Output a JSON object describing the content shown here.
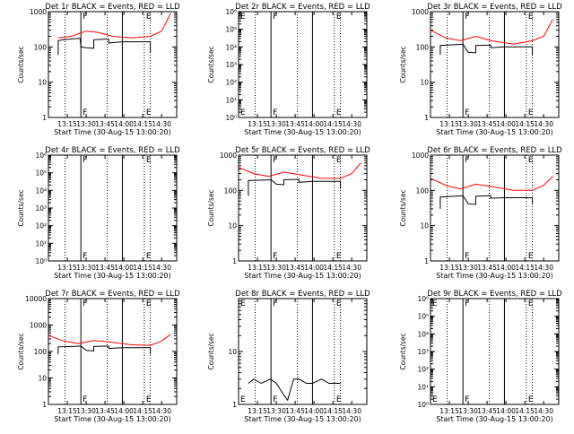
{
  "colors": {
    "events": "#000000",
    "lld": "#ff0000",
    "axes": "#000000",
    "background": "#ffffff"
  },
  "chart_data": [
    {
      "type": "line",
      "title": "Det 1r BLACK = Events, RED = LLD",
      "xlabel": "Start Time (30-Aug-15 13:00:20)",
      "ylabel": "Counts/sec",
      "ytype": "log",
      "yticks": [
        1,
        10,
        100,
        1000
      ],
      "ytick_labels": [
        "1",
        "10",
        "100",
        "1000"
      ],
      "xticks": [
        13.25,
        13.5,
        13.75,
        14.0,
        14.25,
        14.5
      ],
      "xtick_labels": [
        "13:15",
        "13:30",
        "13:45",
        "14:00",
        "14:15",
        "14:30"
      ],
      "xlim": [
        13.0,
        14.7
      ],
      "ylim": [
        1,
        1000
      ],
      "markers": [
        {
          "x": 13.22,
          "style": "dotted"
        },
        {
          "x": 13.43,
          "style": "solid",
          "label": "F"
        },
        {
          "x": 13.78,
          "style": "dotted"
        },
        {
          "x": 13.98,
          "style": "solid"
        },
        {
          "x": 14.27,
          "style": "dotted",
          "label": "E"
        },
        {
          "x": 14.35,
          "style": "dotted"
        }
      ],
      "series": [
        {
          "name": "Events",
          "x": [
            13.13,
            13.13,
            13.2,
            13.33,
            13.42,
            13.43,
            13.5,
            13.6,
            13.6,
            13.73,
            13.8,
            13.8,
            13.98,
            14.2,
            14.35,
            14.35
          ],
          "y": [
            60,
            150,
            160,
            170,
            175,
            100,
            95,
            92,
            160,
            165,
            165,
            130,
            140,
            140,
            140,
            70
          ]
        },
        {
          "name": "LLD",
          "x": [
            13.13,
            13.3,
            13.5,
            13.65,
            13.85,
            14.1,
            14.35,
            14.5,
            14.62
          ],
          "y": [
            180,
            200,
            280,
            260,
            200,
            180,
            200,
            280,
            900
          ]
        }
      ]
    },
    {
      "type": "line",
      "title": "Det 2r BLACK = Events, RED = LLD",
      "xlabel": "Start Time (30-Aug-15 13:00:20)",
      "ylabel": "Counts/sec",
      "ytype": "log",
      "yticks": [
        1,
        10,
        100,
        1000,
        10000,
        100000,
        1000000
      ],
      "ytick_labels": [
        "10⁰",
        "10¹",
        "10²",
        "10³",
        "10⁴",
        "10⁵",
        "10⁶"
      ],
      "xticks": [
        13.25,
        13.5,
        13.75,
        14.0,
        14.25,
        14.5
      ],
      "xtick_labels": [
        "13:15",
        "13:30",
        "13:45",
        "14:00",
        "14:15",
        "14:30"
      ],
      "xlim": [
        13.0,
        14.7
      ],
      "ylim": [
        1,
        1000000
      ],
      "markers": [
        {
          "x": 13.0,
          "style": "solid",
          "label": "E"
        },
        {
          "x": 13.22,
          "style": "dotted"
        },
        {
          "x": 13.43,
          "style": "solid",
          "label": "F"
        },
        {
          "x": 13.78,
          "style": "dotted"
        },
        {
          "x": 13.98,
          "style": "solid"
        },
        {
          "x": 14.27,
          "style": "dotted",
          "label": "E"
        },
        {
          "x": 14.35,
          "style": "dotted"
        }
      ],
      "series": []
    },
    {
      "type": "line",
      "title": "Det 3r BLACK = Events, RED = LLD",
      "xlabel": "Start Time (30-Aug-15 13:00:20)",
      "ylabel": "Counts/sec",
      "ytype": "log",
      "yticks": [
        1,
        10,
        100,
        1000
      ],
      "ytick_labels": [
        "1",
        "10",
        "100",
        "1000"
      ],
      "xticks": [
        13.25,
        13.5,
        13.75,
        14.0,
        14.25,
        14.5
      ],
      "xtick_labels": [
        "13:15",
        "13:30",
        "13:45",
        "14:00",
        "14:15",
        "14:30"
      ],
      "xlim": [
        13.0,
        14.7
      ],
      "ylim": [
        1,
        1000
      ],
      "markers": [
        {
          "x": 13.22,
          "style": "dotted"
        },
        {
          "x": 13.43,
          "style": "solid",
          "label": "F"
        },
        {
          "x": 13.78,
          "style": "dotted"
        },
        {
          "x": 13.98,
          "style": "solid"
        },
        {
          "x": 14.27,
          "style": "dotted",
          "label": "E"
        },
        {
          "x": 14.35,
          "style": "dotted"
        }
      ],
      "series": [
        {
          "name": "Events",
          "x": [
            13.13,
            13.13,
            13.3,
            13.42,
            13.43,
            13.5,
            13.6,
            13.6,
            13.73,
            13.8,
            13.8,
            13.98,
            14.2,
            14.35,
            14.35
          ],
          "y": [
            60,
            110,
            115,
            118,
            120,
            70,
            68,
            110,
            112,
            112,
            95,
            100,
            100,
            100,
            60
          ]
        },
        {
          "name": "LLD",
          "x": [
            13.0,
            13.2,
            13.4,
            13.6,
            13.8,
            14.1,
            14.35,
            14.5,
            14.62
          ],
          "y": [
            300,
            180,
            150,
            200,
            150,
            120,
            150,
            200,
            600
          ]
        }
      ]
    },
    {
      "type": "line",
      "title": "Det 4r BLACK = Events, RED = LLD",
      "xlabel": "Start Time (30-Aug-15 13:00:20)",
      "ylabel": "Counts/sec",
      "ytype": "log",
      "yticks": [
        1,
        10,
        100,
        1000,
        10000,
        100000,
        1000000
      ],
      "ytick_labels": [
        "10⁰",
        "10¹",
        "10²",
        "10³",
        "10⁴",
        "10⁵",
        "10⁶"
      ],
      "xticks": [
        13.25,
        13.5,
        13.75,
        14.0,
        14.25,
        14.5
      ],
      "xtick_labels": [
        "13:15",
        "13:30",
        "13:45",
        "14:00",
        "14:15",
        "14:30"
      ],
      "xlim": [
        13.0,
        14.7
      ],
      "ylim": [
        1,
        1000000
      ],
      "markers": [
        {
          "x": 13.22,
          "style": "dotted"
        },
        {
          "x": 13.43,
          "style": "solid",
          "label": "F"
        },
        {
          "x": 13.78,
          "style": "dotted"
        },
        {
          "x": 13.98,
          "style": "solid"
        },
        {
          "x": 14.27,
          "style": "dotted",
          "label": "E"
        },
        {
          "x": 14.35,
          "style": "dotted"
        }
      ],
      "series": []
    },
    {
      "type": "line",
      "title": "Det 5r BLACK = Events, RED = LLD",
      "xlabel": "Start Time (30-Aug-15 13:00:20)",
      "ylabel": "Counts/sec",
      "ytype": "log",
      "yticks": [
        1,
        10,
        100,
        1000
      ],
      "ytick_labels": [
        "1",
        "10",
        "100",
        "1000"
      ],
      "xticks": [
        13.25,
        13.5,
        13.75,
        14.0,
        14.25,
        14.5
      ],
      "xtick_labels": [
        "13:15",
        "13:30",
        "13:45",
        "14:00",
        "14:15",
        "14:30"
      ],
      "xlim": [
        13.0,
        14.7
      ],
      "ylim": [
        1,
        1000
      ],
      "markers": [
        {
          "x": 13.22,
          "style": "dotted"
        },
        {
          "x": 13.43,
          "style": "solid",
          "label": "F"
        },
        {
          "x": 13.78,
          "style": "dotted"
        },
        {
          "x": 13.98,
          "style": "solid"
        },
        {
          "x": 14.27,
          "style": "dotted",
          "label": "E"
        },
        {
          "x": 14.35,
          "style": "dotted"
        }
      ],
      "series": [
        {
          "name": "Events",
          "x": [
            13.13,
            13.13,
            13.3,
            13.42,
            13.43,
            13.5,
            13.6,
            13.6,
            13.73,
            13.8,
            13.8,
            13.98,
            14.2,
            14.35,
            14.35
          ],
          "y": [
            70,
            190,
            195,
            200,
            200,
            150,
            145,
            200,
            205,
            205,
            170,
            180,
            180,
            180,
            110
          ]
        },
        {
          "name": "LLD",
          "x": [
            13.0,
            13.2,
            13.4,
            13.6,
            13.8,
            14.1,
            14.35,
            14.5,
            14.62
          ],
          "y": [
            450,
            300,
            250,
            330,
            280,
            220,
            220,
            300,
            600
          ]
        }
      ]
    },
    {
      "type": "line",
      "title": "Det 6r BLACK = Events, RED = LLD",
      "xlabel": "Start Time (30-Aug-15 13:00:20)",
      "ylabel": "Counts/sec",
      "ytype": "log",
      "yticks": [
        1,
        10,
        100,
        1000
      ],
      "ytick_labels": [
        "1",
        "10",
        "100",
        "1000"
      ],
      "xticks": [
        13.25,
        13.5,
        13.75,
        14.0,
        14.25,
        14.5
      ],
      "xtick_labels": [
        "13:15",
        "13:30",
        "13:45",
        "14:00",
        "14:15",
        "14:30"
      ],
      "xlim": [
        13.0,
        14.7
      ],
      "ylim": [
        1,
        1000
      ],
      "markers": [
        {
          "x": 13.22,
          "style": "dotted"
        },
        {
          "x": 13.43,
          "style": "solid",
          "label": "F"
        },
        {
          "x": 13.78,
          "style": "dotted"
        },
        {
          "x": 13.98,
          "style": "solid"
        },
        {
          "x": 14.27,
          "style": "dotted",
          "label": "E"
        },
        {
          "x": 14.35,
          "style": "dotted"
        }
      ],
      "series": [
        {
          "name": "Events",
          "x": [
            13.13,
            13.13,
            13.3,
            13.42,
            13.43,
            13.5,
            13.6,
            13.6,
            13.73,
            13.8,
            13.8,
            13.98,
            14.2,
            14.35,
            14.35
          ],
          "y": [
            30,
            65,
            68,
            70,
            70,
            42,
            40,
            68,
            70,
            70,
            60,
            62,
            62,
            62,
            40
          ]
        },
        {
          "name": "LLD",
          "x": [
            13.0,
            13.2,
            13.4,
            13.6,
            13.8,
            14.1,
            14.35,
            14.5,
            14.62
          ],
          "y": [
            220,
            140,
            110,
            150,
            130,
            100,
            100,
            140,
            250
          ]
        }
      ]
    },
    {
      "type": "line",
      "title": "Det 7r BLACK = Events, RED = LLD",
      "xlabel": "Start Time (30-Aug-15 13:00:20)",
      "ylabel": "Counts/sec",
      "ytype": "log",
      "yticks": [
        1,
        10,
        100,
        1000,
        10000
      ],
      "ytick_labels": [
        "1",
        "10",
        "100",
        "1000",
        "10000"
      ],
      "xticks": [
        13.25,
        13.5,
        13.75,
        14.0,
        14.25,
        14.5
      ],
      "xtick_labels": [
        "13:15",
        "13:30",
        "13:45",
        "14:00",
        "14:15",
        "14:30"
      ],
      "xlim": [
        13.0,
        14.7
      ],
      "ylim": [
        1,
        10000
      ],
      "markers": [
        {
          "x": 13.22,
          "style": "dotted"
        },
        {
          "x": 13.43,
          "style": "solid",
          "label": "F"
        },
        {
          "x": 13.78,
          "style": "dotted"
        },
        {
          "x": 13.98,
          "style": "solid"
        },
        {
          "x": 14.27,
          "style": "dotted",
          "label": "E"
        },
        {
          "x": 14.35,
          "style": "dotted"
        }
      ],
      "series": [
        {
          "name": "Events",
          "x": [
            13.13,
            13.13,
            13.3,
            13.42,
            13.43,
            13.5,
            13.6,
            13.6,
            13.73,
            13.8,
            13.8,
            13.98,
            14.2,
            14.35,
            14.35
          ],
          "y": [
            80,
            150,
            155,
            160,
            160,
            110,
            105,
            155,
            160,
            160,
            130,
            140,
            140,
            140,
            80
          ]
        },
        {
          "name": "LLD",
          "x": [
            13.0,
            13.2,
            13.4,
            13.6,
            13.8,
            14.1,
            14.35,
            14.5,
            14.62
          ],
          "y": [
            400,
            250,
            200,
            260,
            230,
            180,
            170,
            250,
            450
          ]
        }
      ]
    },
    {
      "type": "line",
      "title": "Det 8r BLACK = Events, RED = LLD",
      "xlabel": "Start Time (30-Aug-15 13:00:20)",
      "ylabel": "Counts/sec",
      "ytype": "log",
      "yticks": [
        1,
        10
      ],
      "ytick_labels": [
        "1",
        "10"
      ],
      "xticks": [
        13.25,
        13.5,
        13.75,
        14.0,
        14.25,
        14.5
      ],
      "xtick_labels": [
        "13:15",
        "13:30",
        "13:45",
        "14:00",
        "14:15",
        "14:30"
      ],
      "xlim": [
        13.0,
        14.7
      ],
      "ylim": [
        1,
        100
      ],
      "markers": [
        {
          "x": 13.0,
          "style": "solid",
          "label": "E"
        },
        {
          "x": 13.22,
          "style": "dotted"
        },
        {
          "x": 13.43,
          "style": "solid",
          "label": "F"
        },
        {
          "x": 13.78,
          "style": "dotted"
        },
        {
          "x": 13.98,
          "style": "solid"
        },
        {
          "x": 14.27,
          "style": "dotted",
          "label": "E"
        },
        {
          "x": 14.35,
          "style": "dotted"
        }
      ],
      "series": [
        {
          "name": "Events",
          "x": [
            13.13,
            13.2,
            13.3,
            13.42,
            13.5,
            13.6,
            13.65,
            13.73,
            13.8,
            13.9,
            13.98,
            14.1,
            14.2,
            14.35
          ],
          "y": [
            2.5,
            3,
            2.5,
            3,
            2.5,
            1.5,
            1.2,
            3,
            3,
            2.5,
            2.5,
            3,
            2.5,
            2.5
          ]
        }
      ]
    },
    {
      "type": "line",
      "title": "Det 9r BLACK = Events, RED = LLD",
      "xlabel": "Start Time (30-Aug-15 13:00:20)",
      "ylabel": "Counts/sec",
      "ytype": "log",
      "yticks": [
        1,
        10,
        100,
        1000,
        10000,
        100000,
        1000000
      ],
      "ytick_labels": [
        "10⁰",
        "10¹",
        "10²",
        "10³",
        "10⁴",
        "10⁵",
        "10⁶"
      ],
      "xticks": [
        13.25,
        13.5,
        13.75,
        14.0,
        14.25,
        14.5
      ],
      "xtick_labels": [
        "13:15",
        "13:30",
        "13:45",
        "14:00",
        "14:15",
        "14:30"
      ],
      "xlim": [
        13.0,
        14.7
      ],
      "ylim": [
        1,
        1000000
      ],
      "markers": [
        {
          "x": 13.0,
          "style": "solid",
          "label": "E"
        },
        {
          "x": 13.22,
          "style": "dotted"
        },
        {
          "x": 13.43,
          "style": "solid",
          "label": "F"
        },
        {
          "x": 13.78,
          "style": "dotted"
        },
        {
          "x": 13.98,
          "style": "solid"
        },
        {
          "x": 14.27,
          "style": "dotted",
          "label": "E"
        },
        {
          "x": 14.35,
          "style": "dotted"
        }
      ],
      "series": []
    }
  ]
}
